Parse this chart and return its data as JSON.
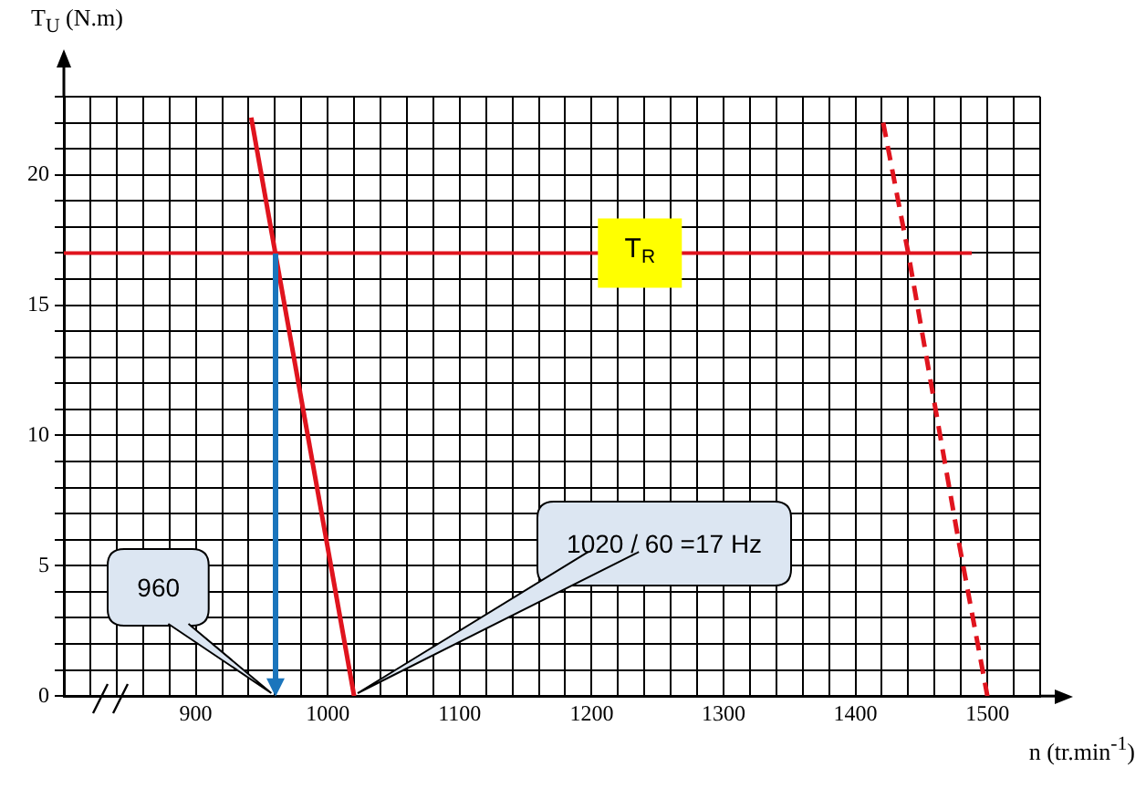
{
  "chart_data": {
    "type": "line",
    "xlabel": "n (tr.min$^{-1}$)",
    "ylabel": "T$_{U}$ (N.m)",
    "xlim": [
      800,
      1540
    ],
    "xticks": [
      {
        "value": 800,
        "label": null
      },
      {
        "value": 820,
        "label": null
      },
      {
        "value": 840,
        "label": null
      },
      {
        "value": 860,
        "label": null
      },
      {
        "value": 880,
        "label": null
      },
      900,
      {
        "value": 920,
        "label": null
      },
      {
        "value": 940,
        "label": null
      },
      {
        "value": 960,
        "label": null
      },
      {
        "value": 980,
        "label": null
      },
      1000,
      {
        "value": 1020,
        "label": null
      },
      {
        "value": 1040,
        "label": null
      },
      {
        "value": 1060,
        "label": null
      },
      {
        "value": 1080,
        "label": null
      },
      1100,
      {
        "value": 1120,
        "label": null
      },
      {
        "value": 1140,
        "label": null
      },
      {
        "value": 1160,
        "label": null
      },
      {
        "value": 1180,
        "label": null
      },
      1200,
      {
        "value": 1220,
        "label": null
      },
      {
        "value": 1240,
        "label": null
      },
      {
        "value": 1260,
        "label": null
      },
      {
        "value": 1280,
        "label": null
      },
      1300,
      {
        "value": 1320,
        "label": null
      },
      {
        "value": 1340,
        "label": null
      },
      {
        "value": 1360,
        "label": null
      },
      {
        "value": 1380,
        "label": null
      },
      1400,
      {
        "value": 1420,
        "label": null
      },
      {
        "value": 1440,
        "label": null
      },
      {
        "value": 1460,
        "label": null
      },
      {
        "value": 1480,
        "label": null
      },
      1500,
      {
        "value": 1520,
        "label": null
      },
      {
        "value": 1540,
        "label": null
      }
    ],
    "ylim": [
      0,
      23
    ],
    "yticks": [
      0,
      {
        "value": 1,
        "label": null
      },
      {
        "value": 2,
        "label": null
      },
      {
        "value": 3,
        "label": null
      },
      {
        "value": 4,
        "label": null
      },
      5,
      {
        "value": 6,
        "label": null
      },
      {
        "value": 7,
        "label": null
      },
      {
        "value": 8,
        "label": null
      },
      {
        "value": 9,
        "label": null
      },
      10,
      {
        "value": 11,
        "label": null
      },
      {
        "value": 12,
        "label": null
      },
      {
        "value": 13,
        "label": null
      },
      {
        "value": 14,
        "label": null
      },
      15,
      {
        "value": 16,
        "label": null
      },
      {
        "value": 17,
        "label": null
      },
      {
        "value": 18,
        "label": null
      },
      {
        "value": 19,
        "label": null
      },
      20,
      {
        "value": 21,
        "label": null
      },
      {
        "value": 22,
        "label": null
      },
      {
        "value": 23,
        "label": null
      }
    ],
    "grid": true,
    "legend": false,
    "series": [
      {
        "color": "#e0141e",
        "x": [
          942,
          1020
        ],
        "values": [
          22.2,
          0
        ]
      },
      {
        "color": "#e0141e",
        "line_style": "dashed",
        "x": [
          1421,
          1440,
          1478,
          1500
        ],
        "values": [
          22,
          17,
          6,
          0
        ]
      }
    ],
    "ref_lines": [
      {
        "axis": "y",
        "value": 17,
        "label": "T$_{R}$",
        "color": "#e0141e"
      }
    ],
    "annotations": [
      "960",
      "1020 / 60 =17 Hz"
    ]
  }
}
